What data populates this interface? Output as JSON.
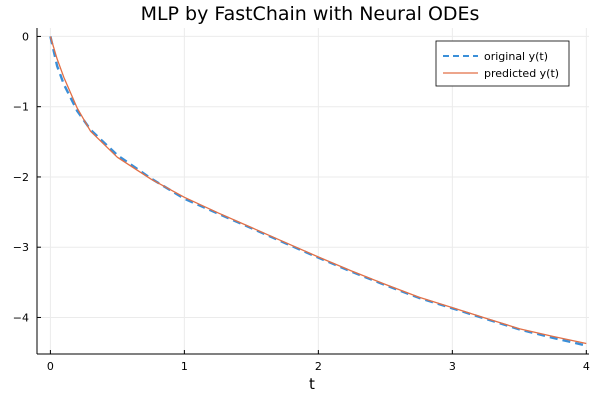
{
  "chart_data": {
    "type": "line",
    "title": "MLP by FastChain with Neural ODEs",
    "xlabel": "t",
    "ylabel": "",
    "xlim": [
      -0.1,
      4.02
    ],
    "ylim": [
      -4.52,
      0.12
    ],
    "xticks": [
      0,
      1,
      2,
      3,
      4
    ],
    "yticks": [
      0,
      -1,
      -2,
      -3,
      -4
    ],
    "grid": true,
    "legend_position": "top-right",
    "series": [
      {
        "name": "original y(t)",
        "color": "#3a8fd8",
        "style": "dashed",
        "x": [
          0,
          0.05,
          0.1,
          0.2,
          0.3,
          0.5,
          0.75,
          1.0,
          1.25,
          1.5,
          1.75,
          2.0,
          2.25,
          2.5,
          2.75,
          3.0,
          3.25,
          3.5,
          3.75,
          4.0
        ],
        "y": [
          0,
          -0.42,
          -0.68,
          -1.06,
          -1.33,
          -1.69,
          -2.02,
          -2.31,
          -2.52,
          -2.73,
          -2.94,
          -3.15,
          -3.35,
          -3.54,
          -3.72,
          -3.87,
          -4.02,
          -4.17,
          -4.29,
          -4.4
        ]
      },
      {
        "name": "predicted y(t)",
        "color": "#e26f46",
        "style": "solid",
        "x": [
          0,
          0.05,
          0.1,
          0.2,
          0.3,
          0.5,
          0.75,
          1.0,
          1.25,
          1.5,
          1.75,
          2.0,
          2.25,
          2.5,
          2.75,
          3.0,
          3.25,
          3.5,
          3.75,
          4.0
        ],
        "y": [
          0,
          -0.32,
          -0.58,
          -1.02,
          -1.35,
          -1.72,
          -2.03,
          -2.29,
          -2.51,
          -2.72,
          -2.93,
          -3.14,
          -3.34,
          -3.53,
          -3.71,
          -3.86,
          -4.01,
          -4.16,
          -4.27,
          -4.37
        ]
      }
    ]
  }
}
